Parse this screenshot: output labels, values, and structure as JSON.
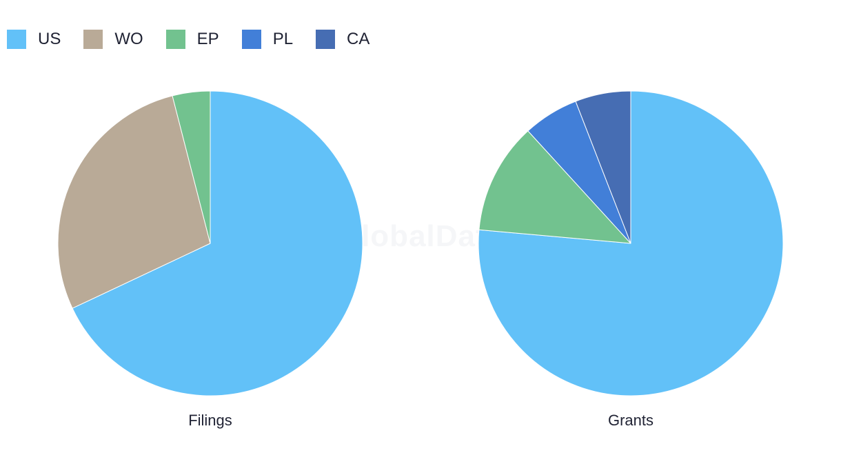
{
  "legend": [
    {
      "label": "US",
      "color": "#62c1f8"
    },
    {
      "label": "WO",
      "color": "#b9aa97"
    },
    {
      "label": "EP",
      "color": "#72c28f"
    },
    {
      "label": "PL",
      "color": "#427fd8"
    },
    {
      "label": "CA",
      "color": "#466db3"
    }
  ],
  "watermark": "GlobalData",
  "chart_data": [
    {
      "type": "pie",
      "title": "Filings",
      "labels": [
        "US",
        "WO",
        "EP"
      ],
      "values": [
        68,
        28,
        4
      ],
      "colors": [
        "#62c1f8",
        "#b9aa97",
        "#72c28f"
      ]
    },
    {
      "type": "pie",
      "title": "Grants",
      "labels": [
        "US",
        "EP",
        "PL",
        "CA"
      ],
      "values": [
        76.5,
        11.8,
        5.9,
        5.9
      ],
      "colors": [
        "#62c1f8",
        "#72c28f",
        "#427fd8",
        "#466db3"
      ]
    }
  ]
}
